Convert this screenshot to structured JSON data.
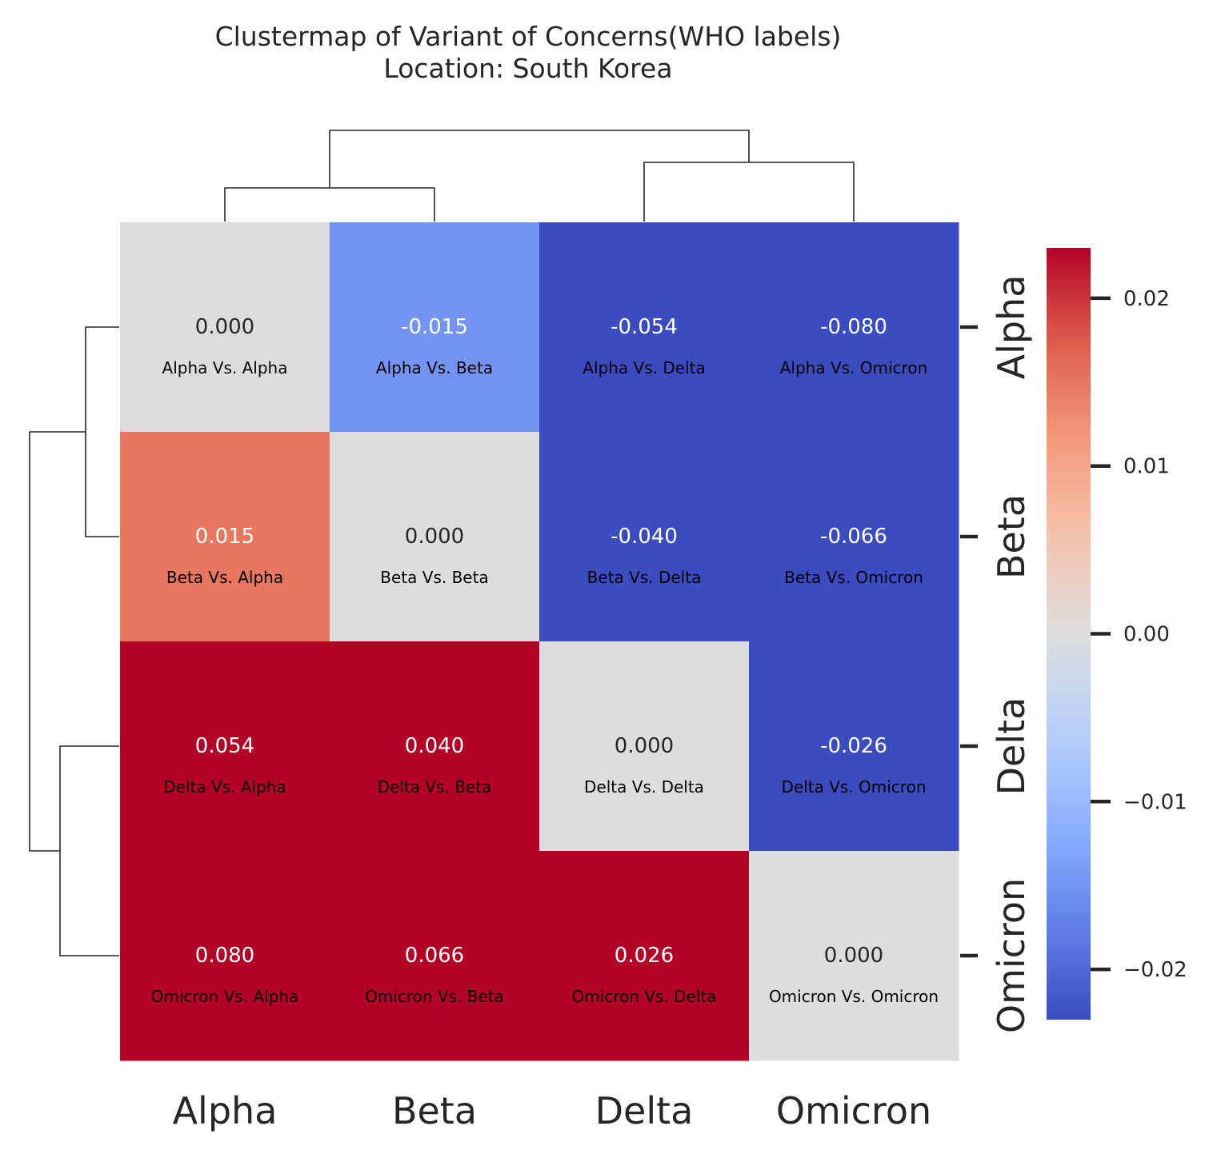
{
  "title": {
    "line1": "Clustermap of Variant of Concerns(WHO labels)",
    "line2": "Location: South Korea"
  },
  "chart_data": {
    "type": "heatmap",
    "categories_x": [
      "Alpha",
      "Beta",
      "Delta",
      "Omicron"
    ],
    "categories_y": [
      "Alpha",
      "Beta",
      "Delta",
      "Omicron"
    ],
    "values": [
      [
        0.0,
        -0.015,
        -0.054,
        -0.08
      ],
      [
        0.015,
        0.0,
        -0.04,
        -0.066
      ],
      [
        0.054,
        0.04,
        0.0,
        -0.026
      ],
      [
        0.08,
        0.066,
        0.026,
        0.0
      ]
    ],
    "value_labels": [
      [
        "0.000",
        "-0.015",
        "-0.054",
        "-0.080"
      ],
      [
        "0.015",
        "0.000",
        "-0.040",
        "-0.066"
      ],
      [
        "0.054",
        "0.040",
        "0.000",
        "-0.026"
      ],
      [
        "0.080",
        "0.066",
        "0.026",
        "0.000"
      ]
    ],
    "cell_captions": [
      [
        "Alpha Vs. Alpha",
        "Alpha Vs. Beta",
        "Alpha Vs. Delta",
        "Alpha Vs. Omicron"
      ],
      [
        "Beta Vs. Alpha",
        "Beta Vs. Beta",
        "Beta Vs. Delta",
        "Beta Vs. Omicron"
      ],
      [
        "Delta Vs. Alpha",
        "Delta Vs. Beta",
        "Delta Vs. Delta",
        "Delta Vs. Omicron"
      ],
      [
        "Omicron Vs. Alpha",
        "Omicron Vs. Beta",
        "Omicron Vs. Delta",
        "Omicron Vs. Omicron"
      ]
    ],
    "colormap": "coolwarm",
    "vmin": -0.023,
    "vmax": 0.023,
    "colorbar": {
      "ticks": [
        0.02,
        0.01,
        0.0,
        -0.01,
        -0.02
      ],
      "tick_labels": [
        "0.02",
        "0.01",
        "0.00",
        "−0.01",
        "−0.02"
      ]
    },
    "dendrogram": "both",
    "xlabel": "",
    "ylabel": ""
  }
}
